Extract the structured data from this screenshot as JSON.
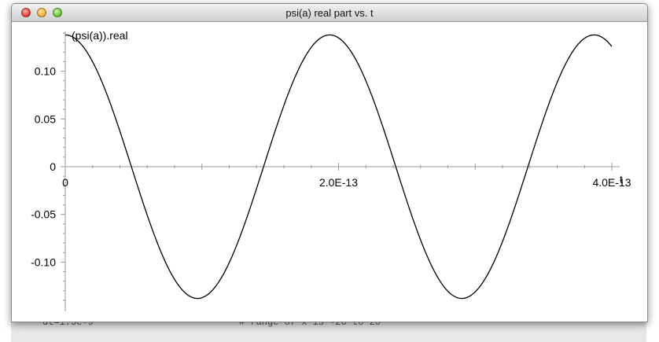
{
  "window": {
    "title": "psi(a) real part vs. t"
  },
  "background": {
    "text_left": "dt=1.5e-9",
    "text_right": "# range of x is -20 to 20"
  },
  "chart_data": {
    "type": "line",
    "ylabel": "(psi(a)).real",
    "xlabel": "t",
    "x_ticks": [
      {
        "value": 0,
        "label": "0"
      },
      {
        "value": 2e-13,
        "label": "2.0E-13"
      },
      {
        "value": 4e-13,
        "label": "4.0E-13"
      }
    ],
    "y_ticks": [
      {
        "value": 0.1,
        "label": "0.10"
      },
      {
        "value": 0.05,
        "label": "0.05"
      },
      {
        "value": 0,
        "label": "0"
      },
      {
        "value": -0.05,
        "label": "-0.05"
      },
      {
        "value": -0.1,
        "label": "-0.10"
      }
    ],
    "xlim": [
      0,
      4e-13
    ],
    "ylim": [
      -0.14,
      0.14
    ],
    "series": [
      {
        "amplitude": 0.138,
        "period": 1.935e-13,
        "x_end": 4e-13,
        "color": "#000000"
      }
    ]
  }
}
